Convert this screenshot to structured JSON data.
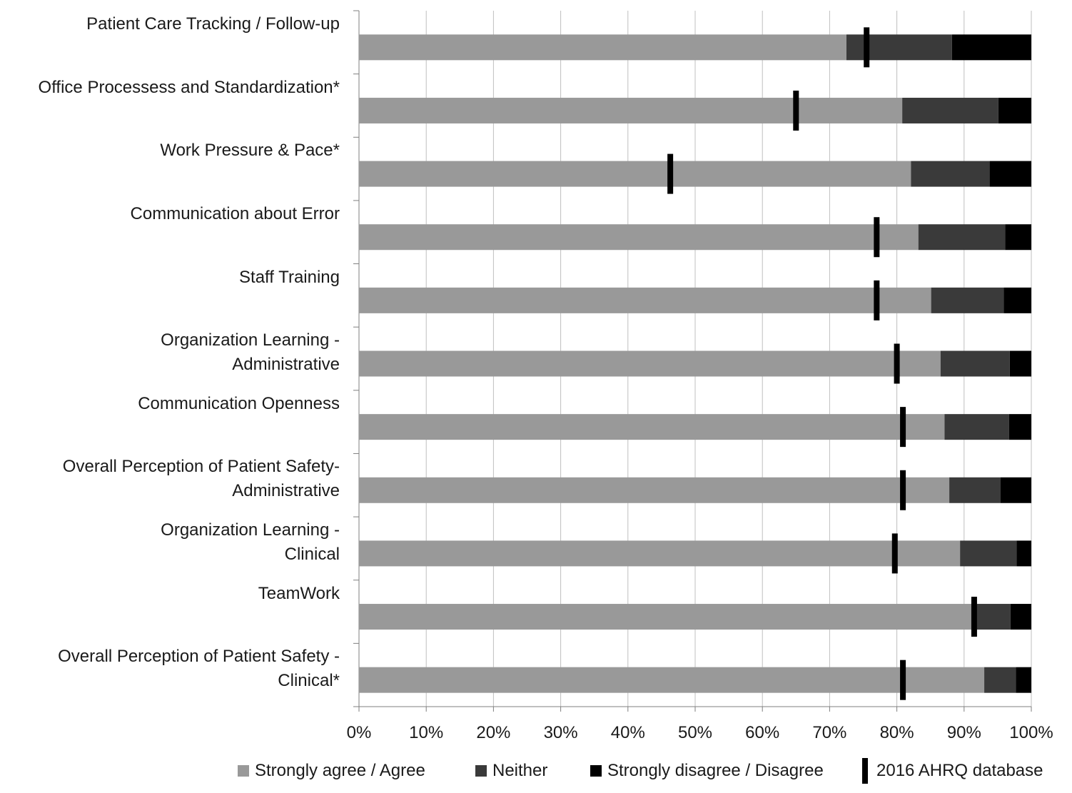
{
  "colors": {
    "agree": "#999999",
    "neither": "#3a3a3a",
    "disagree": "#000000",
    "benchmark": "#000000",
    "grid": "#bfbfbf",
    "axis": "#7f7f7f"
  },
  "chart_data": {
    "type": "bar",
    "orientation": "horizontal",
    "stacked": true,
    "xlim": [
      0,
      100
    ],
    "x_unit": "%",
    "x_ticks": [
      "0%",
      "10%",
      "20%",
      "30%",
      "40%",
      "50%",
      "60%",
      "70%",
      "80%",
      "90%",
      "100%"
    ],
    "grid": true,
    "legend_position": "bottom",
    "categories": [
      "Patient Care Tracking / Follow-up",
      "Office Processess  and Standardization*",
      "Work Pressure & Pace*",
      "Communication about  Error",
      "Staff Training",
      "Organization Learning -\nAdministrative",
      "Communication Openness",
      "Overall Perception of Patient Safety-\nAdministrative",
      "Organization Learning -\nClinical",
      "TeamWork",
      "Overall Perception of Patient Safety -\nClinical*"
    ],
    "series": [
      {
        "name": "Strongly agree / Agree",
        "values": [
          72.5,
          80.8,
          82.1,
          83.2,
          85.1,
          86.5,
          87.1,
          87.8,
          89.4,
          91.9,
          93.0
        ]
      },
      {
        "name": "Neither",
        "values": [
          15.7,
          14.3,
          11.7,
          12.9,
          10.8,
          10.3,
          9.6,
          7.6,
          8.4,
          5.0,
          4.7
        ]
      },
      {
        "name": "Strongly disagree / Disagree",
        "values": [
          11.8,
          4.9,
          6.2,
          3.9,
          4.1,
          3.2,
          3.3,
          4.6,
          2.2,
          3.1,
          2.3
        ]
      }
    ],
    "benchmark": {
      "name": "2016 AHRQ database",
      "values": [
        75.5,
        65.0,
        46.3,
        77.0,
        77.0,
        80.0,
        80.9,
        80.9,
        79.7,
        91.5,
        80.9
      ]
    }
  }
}
